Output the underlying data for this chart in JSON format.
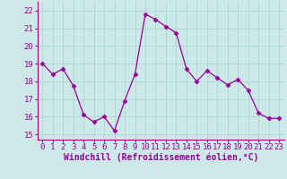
{
  "x": [
    0,
    1,
    2,
    3,
    4,
    5,
    6,
    7,
    8,
    9,
    10,
    11,
    12,
    13,
    14,
    15,
    16,
    17,
    18,
    19,
    20,
    21,
    22,
    23
  ],
  "y": [
    19.0,
    18.4,
    18.7,
    17.75,
    16.1,
    15.7,
    16.0,
    15.2,
    16.9,
    18.4,
    21.8,
    21.5,
    21.1,
    20.75,
    18.7,
    18.0,
    18.6,
    18.2,
    17.8,
    18.1,
    17.5,
    16.2,
    15.9,
    15.9
  ],
  "line_color": "#990099",
  "marker": "D",
  "marker_size": 2.5,
  "bg_color": "#cce8e8",
  "grid_color": "#b0d8d8",
  "xlabel": "Windchill (Refroidissement éolien,°C)",
  "xlabel_color": "#990099",
  "xlabel_fontsize": 7,
  "tick_color": "#990099",
  "tick_fontsize": 6.5,
  "ytick_labels": [
    "15",
    "16",
    "17",
    "18",
    "19",
    "20",
    "21",
    "22"
  ],
  "ylim": [
    14.7,
    22.5
  ],
  "xlim": [
    -0.5,
    23.5
  ]
}
